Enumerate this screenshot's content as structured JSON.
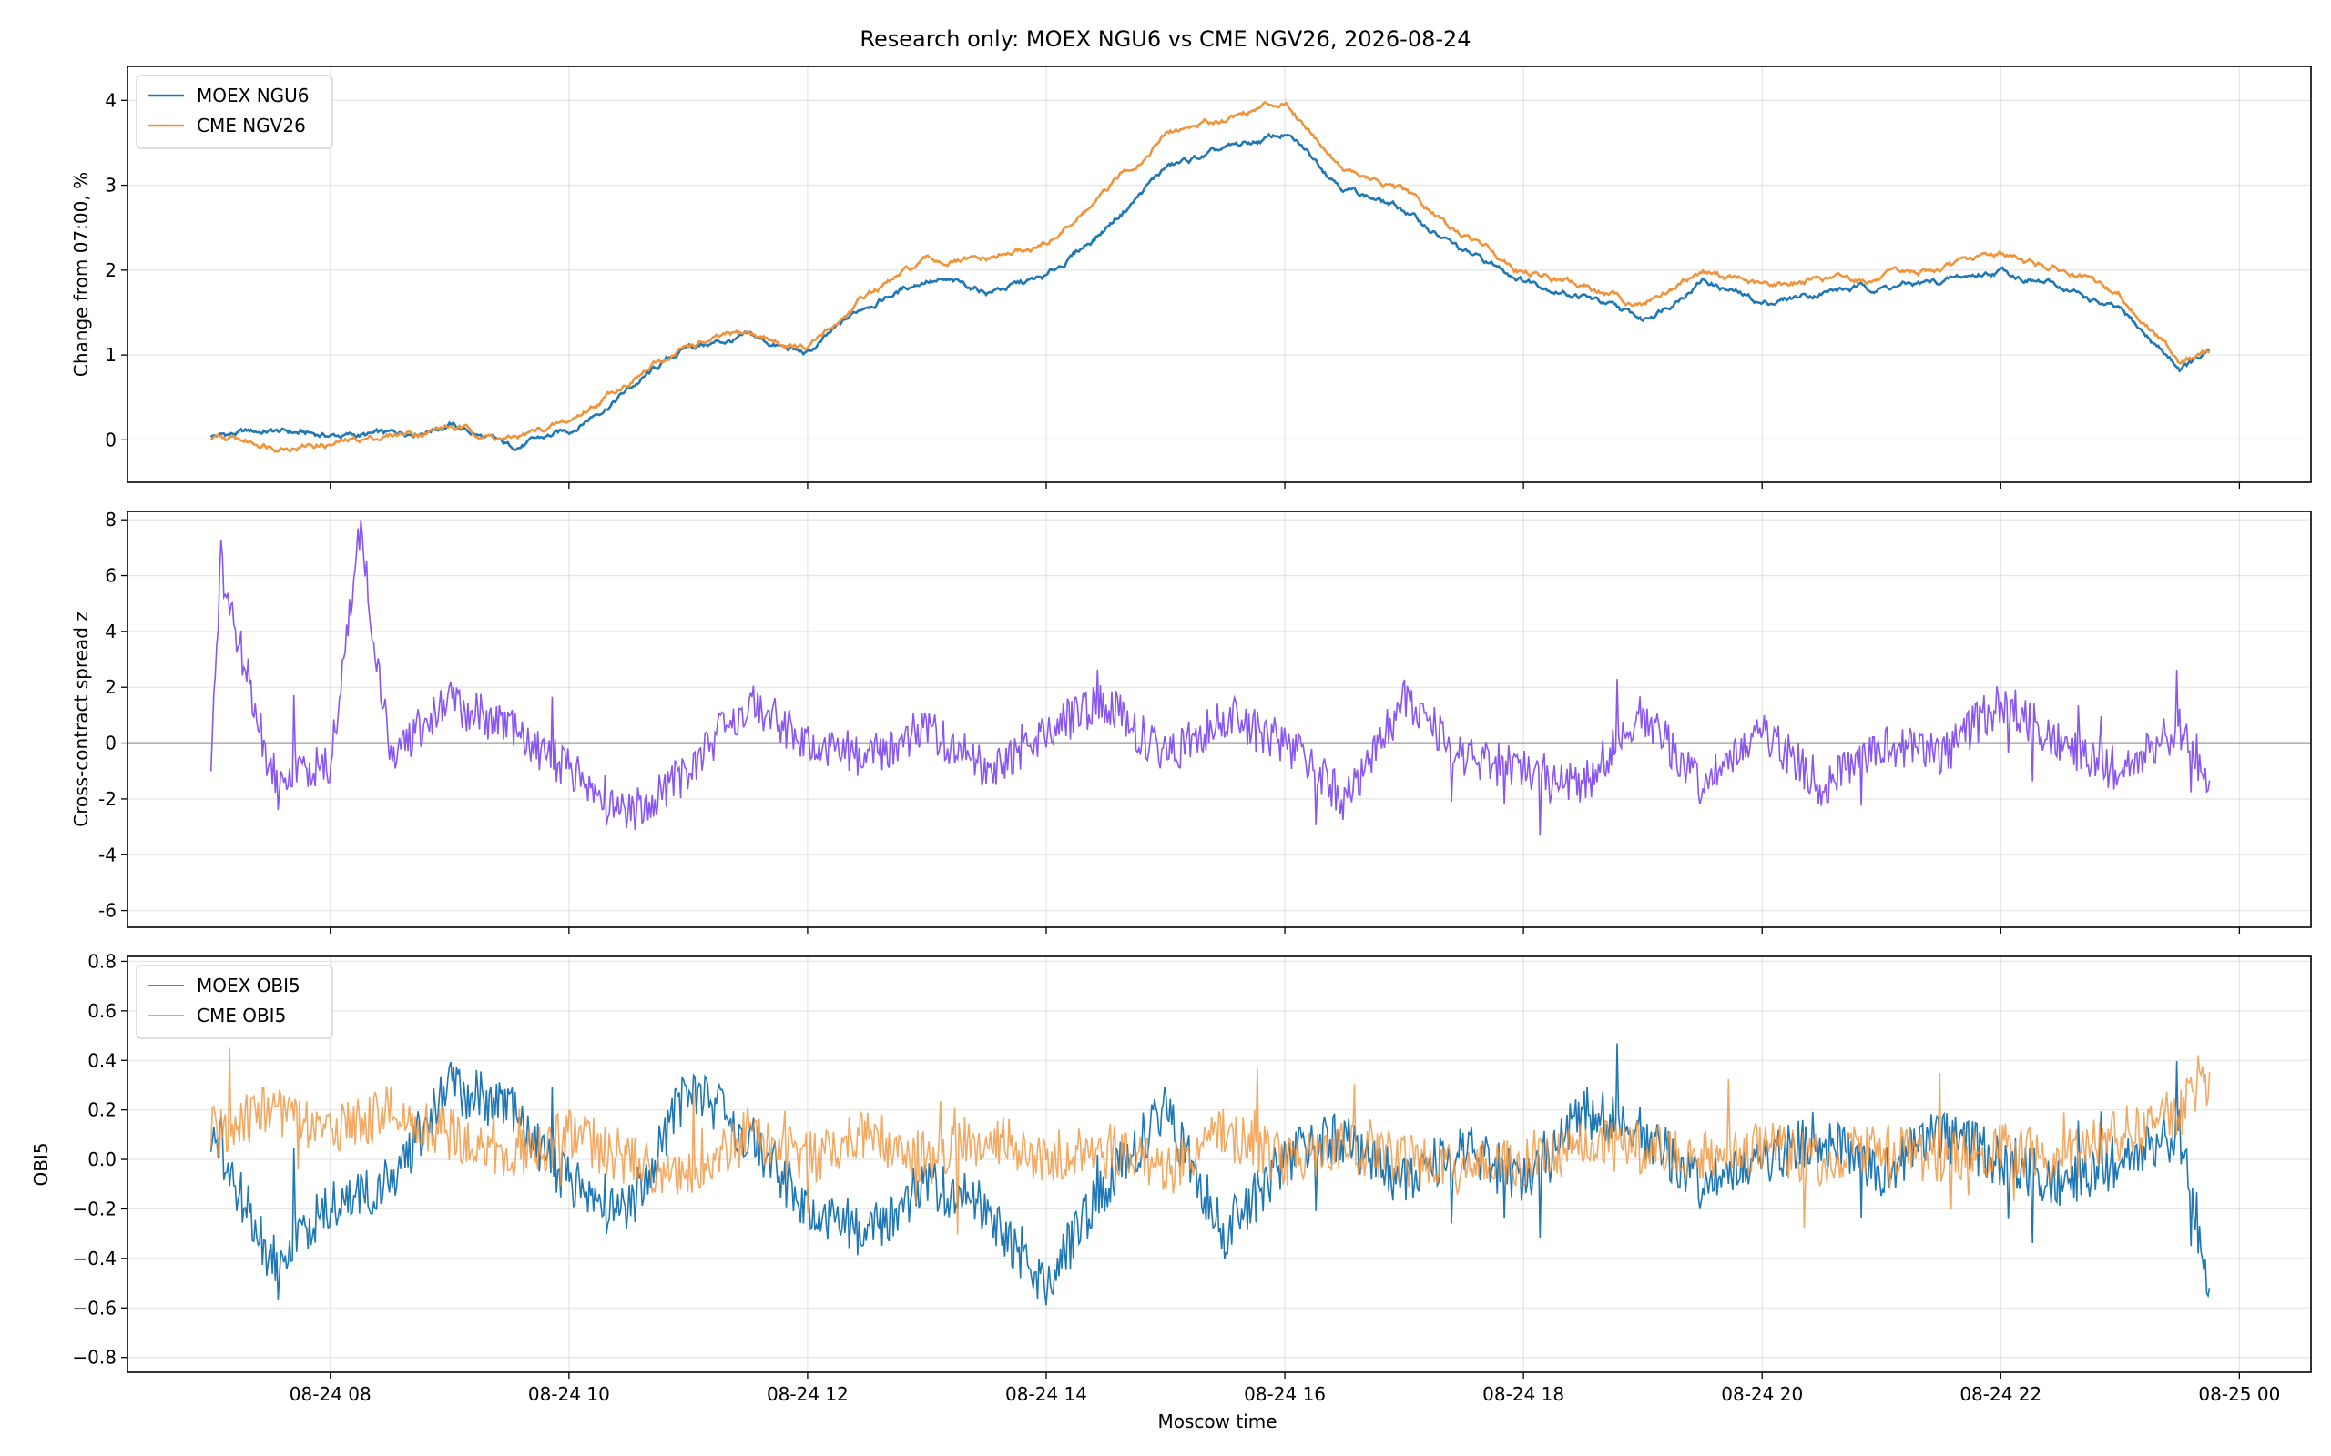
{
  "figure": {
    "title": "Research only: MOEX NGU6 vs CME NGV26, 2026-08-24",
    "xlabel": "Moscow time"
  },
  "chart_data": [
    {
      "type": "line",
      "id": "price",
      "ylabel": "Change from 07:00, %",
      "ylim": [
        -0.5,
        4.4
      ],
      "yticks": [
        0,
        1,
        2,
        3,
        4
      ],
      "x_hours_range": [
        6.3,
        24.6
      ],
      "xticks": [
        8,
        10,
        12,
        14,
        16,
        18,
        20,
        22,
        24
      ],
      "xtick_labels": [
        "08-24 08",
        "08-24 10",
        "08-24 12",
        "08-24 14",
        "08-24 16",
        "08-24 18",
        "08-24 20",
        "08-24 22",
        "08-25 00"
      ],
      "grid": true,
      "legend": "top-left",
      "x": [
        "07:00",
        "07:30",
        "08:00",
        "08:30",
        "09:00",
        "09:30",
        "10:00",
        "10:30",
        "11:00",
        "11:30",
        "12:00",
        "12:30",
        "13:00",
        "13:30",
        "14:00",
        "14:30",
        "15:00",
        "15:30",
        "16:00",
        "16:30",
        "17:00",
        "17:30",
        "18:00",
        "18:30",
        "19:00",
        "19:30",
        "20:00",
        "20:30",
        "21:00",
        "21:30",
        "22:00",
        "22:30",
        "23:00",
        "23:30",
        "23:45"
      ],
      "series": [
        {
          "name": "MOEX NGU6",
          "color": "#1f77b4",
          "values": [
            0.05,
            0.1,
            0.05,
            0.05,
            0.2,
            -0.1,
            0.1,
            0.6,
            1.1,
            1.2,
            1.0,
            1.6,
            1.9,
            1.75,
            1.9,
            2.5,
            3.2,
            3.4,
            3.6,
            3.0,
            2.7,
            2.2,
            1.9,
            1.7,
            1.4,
            1.9,
            1.6,
            1.75,
            1.8,
            1.85,
            2.0,
            1.8,
            1.5,
            0.85,
            1.0
          ]
        },
        {
          "name": "CME NGV26",
          "color": "#f0943b",
          "values": [
            0.0,
            -0.05,
            -0.05,
            0.05,
            0.15,
            0.0,
            0.2,
            0.7,
            1.1,
            1.25,
            1.05,
            1.7,
            2.1,
            2.1,
            2.3,
            2.9,
            3.6,
            3.8,
            4.0,
            3.2,
            2.9,
            2.4,
            2.0,
            1.8,
            1.6,
            2.0,
            1.8,
            1.9,
            1.9,
            2.0,
            2.2,
            2.0,
            1.7,
            0.95,
            1.0
          ]
        }
      ]
    },
    {
      "type": "line",
      "id": "spread",
      "ylabel": "Cross-contract spread z",
      "ylim": [
        -6.6,
        8.3
      ],
      "yticks": [
        -6,
        -4,
        -2,
        0,
        2,
        4,
        6,
        8
      ],
      "zero_line": true,
      "grid": true,
      "x": [
        "07:00",
        "07:05",
        "07:30",
        "08:00",
        "08:15",
        "08:30",
        "09:00",
        "09:30",
        "10:00",
        "10:30",
        "11:00",
        "11:30",
        "12:00",
        "12:30",
        "13:00",
        "13:30",
        "14:00",
        "14:30",
        "15:00",
        "15:30",
        "16:00",
        "16:30",
        "17:00",
        "17:30",
        "18:00",
        "18:30",
        "19:00",
        "19:30",
        "20:00",
        "20:30",
        "21:00",
        "21:30",
        "22:00",
        "22:30",
        "23:00",
        "23:30",
        "23:45"
      ],
      "series": [
        {
          "name": "",
          "color": "#8a56f0",
          "values": [
            -0.5,
            6.2,
            -1.0,
            -0.9,
            7.6,
            -0.5,
            1.5,
            0.5,
            -1.0,
            -2.5,
            -1.0,
            1.5,
            0.0,
            -0.5,
            0.5,
            -1.0,
            0.5,
            1.5,
            -0.5,
            1.0,
            0.0,
            -2.0,
            1.5,
            -0.5,
            -1.0,
            -1.5,
            1.0,
            -1.5,
            0.5,
            -1.5,
            0.0,
            -0.5,
            1.5,
            0.0,
            -1.0,
            0.5,
            -1.2
          ]
        }
      ]
    },
    {
      "type": "line",
      "id": "obi",
      "ylabel": "OBI5",
      "ylim": [
        -0.86,
        0.82
      ],
      "yticks": [
        -0.8,
        -0.6,
        -0.4,
        -0.2,
        0.0,
        0.2,
        0.4,
        0.6,
        0.8
      ],
      "ytick_labels": [
        "−0.8",
        "−0.6",
        "−0.4",
        "−0.2",
        "0.0",
        "0.2",
        "0.4",
        "0.6",
        "0.8"
      ],
      "grid": true,
      "legend": "top-left",
      "x": [
        "07:00",
        "07:30",
        "08:00",
        "08:30",
        "09:00",
        "09:30",
        "10:00",
        "10:30",
        "11:00",
        "11:30",
        "12:00",
        "12:30",
        "13:00",
        "13:30",
        "14:00",
        "14:30",
        "15:00",
        "15:30",
        "16:00",
        "16:30",
        "17:00",
        "17:30",
        "18:00",
        "18:30",
        "19:00",
        "19:30",
        "20:00",
        "20:30",
        "21:00",
        "21:30",
        "22:00",
        "22:30",
        "23:00",
        "23:30",
        "23:45"
      ],
      "series": [
        {
          "name": "MOEX OBI5",
          "color": "#1f77b4",
          "values": [
            0.1,
            -0.4,
            -0.2,
            -0.1,
            0.3,
            0.2,
            -0.1,
            -0.2,
            0.3,
            0.1,
            -0.2,
            -0.3,
            -0.1,
            -0.2,
            -0.5,
            -0.1,
            0.2,
            -0.3,
            0.0,
            0.1,
            -0.1,
            0.05,
            -0.1,
            0.2,
            0.1,
            -0.1,
            0.0,
            0.1,
            -0.05,
            0.1,
            0.0,
            -0.1,
            0.0,
            0.1,
            -0.5
          ]
        },
        {
          "name": "CME OBI5",
          "color": "#f0943b",
          "values": [
            0.1,
            0.2,
            0.1,
            0.2,
            0.1,
            0.0,
            0.1,
            0.0,
            -0.1,
            0.1,
            0.0,
            0.1,
            0.0,
            0.1,
            0.0,
            0.05,
            -0.05,
            0.1,
            0.0,
            0.05,
            0.0,
            -0.05,
            0.0,
            0.05,
            0.05,
            0.0,
            0.05,
            0.0,
            0.05,
            0.0,
            0.05,
            0.0,
            0.1,
            0.2,
            0.3
          ]
        }
      ]
    }
  ]
}
